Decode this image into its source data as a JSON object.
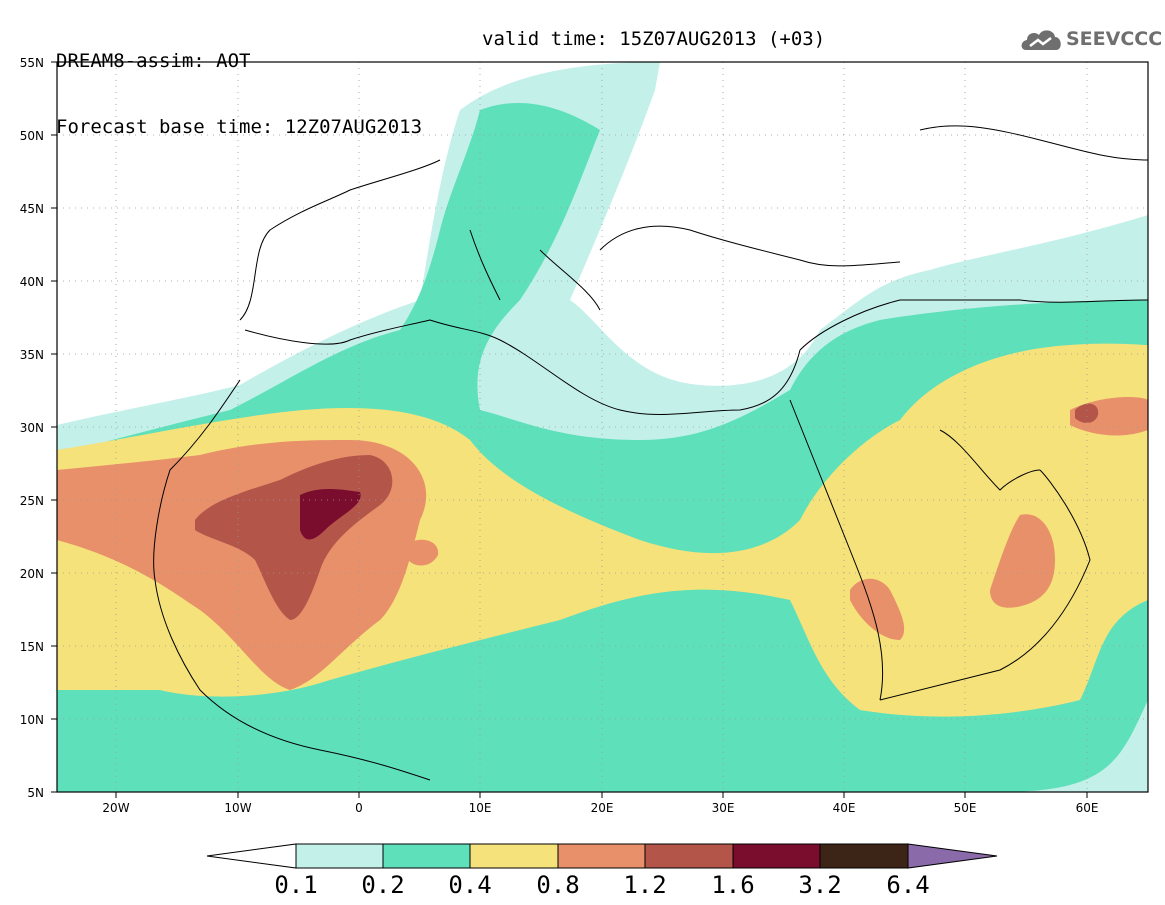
{
  "title": {
    "line1": "DREAM8-assim: AOT",
    "line2": "Forecast base time: 12Z07AUG2013",
    "valid": "valid time: 15Z07AUG2013 (+03)"
  },
  "logo": {
    "text": "SEEVCCC",
    "icon": "cloud-icon"
  },
  "map": {
    "projection": "lat-lon",
    "lon_range": [
      -25,
      65
    ],
    "lat_range": [
      5,
      55
    ],
    "grid": "dotted",
    "lat_labels": [
      "55N",
      "50N",
      "45N",
      "40N",
      "35N",
      "30N",
      "25N",
      "20N",
      "15N",
      "10N",
      "5N"
    ],
    "lon_labels": [
      "20W",
      "10W",
      "0",
      "10E",
      "20E",
      "30E",
      "40E",
      "50E",
      "60E"
    ]
  },
  "colorbar": {
    "levels": [
      "0.1",
      "0.2",
      "0.4",
      "0.8",
      "1.2",
      "1.6",
      "3.2",
      "6.4"
    ],
    "colors": [
      "#ffffff",
      "#c4f0ea",
      "#5ee0bb",
      "#f5e27a",
      "#e8906a",
      "#b4554a",
      "#7a0c2e",
      "#3c2416",
      "#8a6aa8"
    ]
  }
}
